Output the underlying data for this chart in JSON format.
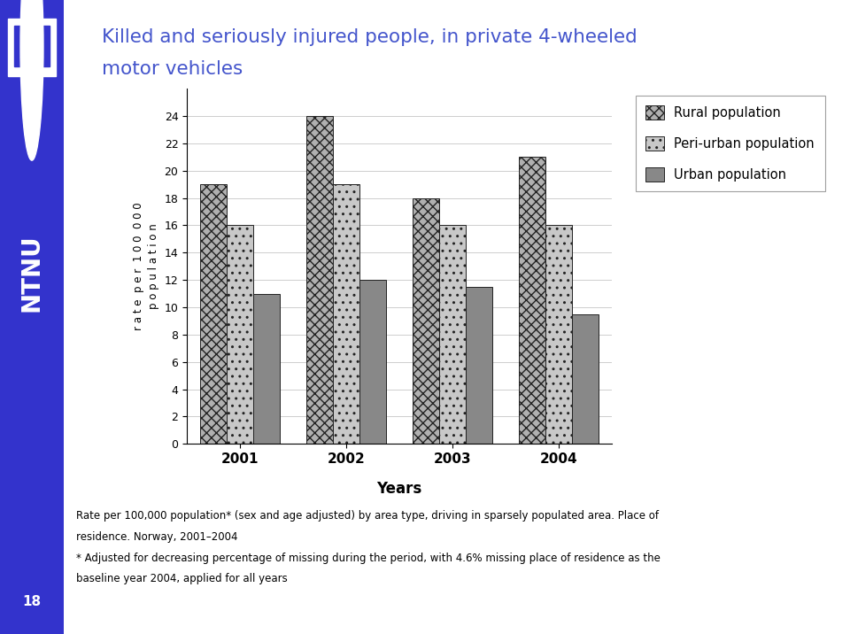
{
  "title_line1": "Killed and seriously injured people, in private 4-wheeled",
  "title_line2": "motor vehicles",
  "title_color": "#4455cc",
  "years": [
    "2001",
    "2002",
    "2003",
    "2004"
  ],
  "rural": [
    19.0,
    24.0,
    18.0,
    21.0
  ],
  "peri_urban": [
    16.0,
    19.0,
    16.0,
    16.0
  ],
  "urban": [
    11.0,
    12.0,
    11.5,
    9.5
  ],
  "ylabel": "r a t e  p e r  1 0 0  0 0 0\np o p u l a t i o n",
  "xlabel": "Years",
  "ylim": [
    0,
    26
  ],
  "yticks": [
    0,
    2,
    4,
    6,
    8,
    10,
    12,
    14,
    16,
    18,
    20,
    22,
    24
  ],
  "legend_labels": [
    "Rural population",
    "Peri-urban population",
    "Urban population"
  ],
  "bar_width": 0.25,
  "background_color": "#ffffff",
  "sidebar_color": "#3333cc",
  "footnote1": "Rate per 100,000 population* (sex and age adjusted) by area type, driving in sparsely populated area. Place of",
  "footnote2": "residence. Norway, 2001–2004",
  "footnote3": "* Adjusted for decreasing percentage of missing during the period, with 4.6% missing place of residence as the",
  "footnote4": "baseline year 2004, applied for all years",
  "page_number": "18"
}
